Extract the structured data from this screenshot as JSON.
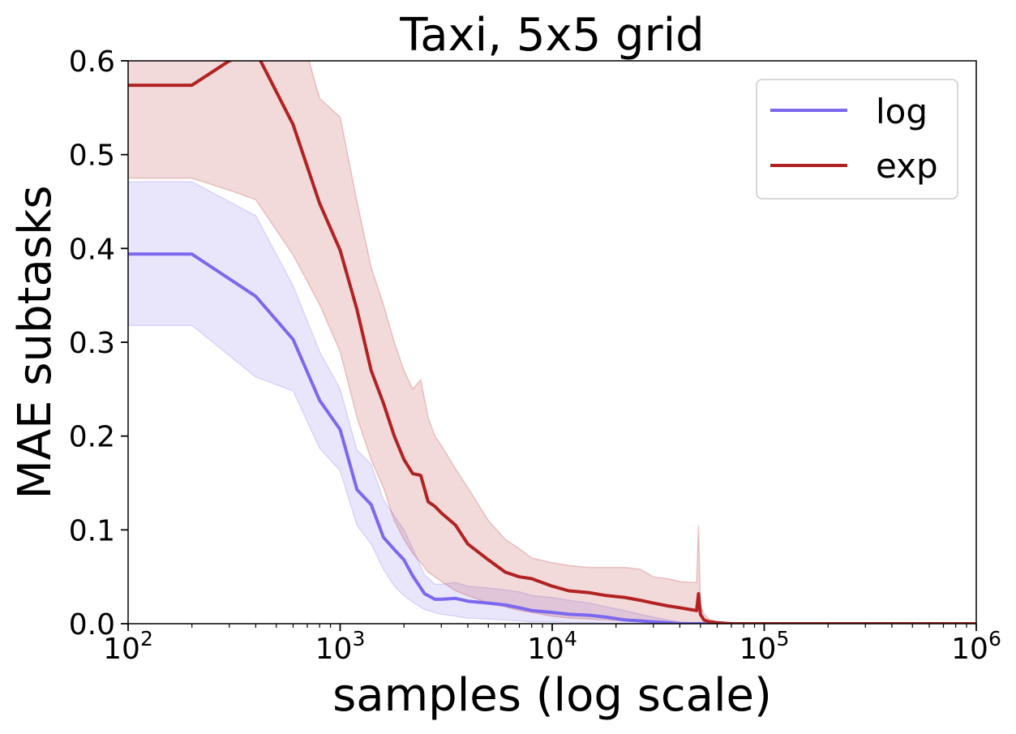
{
  "chart_data": {
    "type": "line",
    "title": "Taxi, 5x5 grid",
    "xlabel": "samples (log scale)",
    "ylabel": "MAE subtasks",
    "xscale": "log",
    "xlim": [
      100,
      1000000
    ],
    "ylim": [
      0,
      0.6
    ],
    "grid": false,
    "legend_position": "top-right",
    "x_ticks": [
      {
        "base": "10",
        "exp": "2"
      },
      {
        "base": "10",
        "exp": "3"
      },
      {
        "base": "10",
        "exp": "4"
      },
      {
        "base": "10",
        "exp": "5"
      },
      {
        "base": "10",
        "exp": "6"
      }
    ],
    "y_ticks": [
      "0.0",
      "0.1",
      "0.2",
      "0.3",
      "0.4",
      "0.5",
      "0.6"
    ],
    "series": [
      {
        "name": "log",
        "color": "#7b68ee",
        "x": [
          100,
          200,
          400,
          600,
          800,
          1000,
          1200,
          1400,
          1600,
          1800,
          2000,
          2200,
          2500,
          2800,
          3000,
          3500,
          4000,
          5000,
          6000,
          7000,
          8000,
          10000,
          12000,
          15000,
          18000,
          22000,
          26000,
          30000,
          35000,
          40000,
          45000,
          50000,
          60000,
          100000,
          1000000
        ],
        "y": [
          0.394,
          0.394,
          0.349,
          0.303,
          0.238,
          0.207,
          0.143,
          0.127,
          0.092,
          0.079,
          0.068,
          0.051,
          0.032,
          0.026,
          0.026,
          0.027,
          0.024,
          0.022,
          0.02,
          0.017,
          0.014,
          0.012,
          0.01,
          0.009,
          0.007,
          0.004,
          0.003,
          0.002,
          0.001,
          0.0,
          0.0,
          0.0,
          0.0,
          0.0,
          0.0
        ],
        "lower": [
          0.318,
          0.318,
          0.263,
          0.248,
          0.187,
          0.163,
          0.105,
          0.085,
          0.058,
          0.04,
          0.03,
          0.023,
          0.015,
          0.012,
          0.01,
          0.008,
          0.006,
          0.005,
          0.004,
          0.003,
          0.002,
          0.002,
          0.001,
          0.001,
          0.0,
          0.0,
          0.0,
          0.0,
          0.0,
          0.0,
          0.0,
          0.0,
          0.0,
          0.0,
          0.0
        ],
        "upper": [
          0.471,
          0.471,
          0.435,
          0.36,
          0.29,
          0.25,
          0.185,
          0.17,
          0.132,
          0.115,
          0.1,
          0.08,
          0.052,
          0.042,
          0.042,
          0.044,
          0.04,
          0.038,
          0.036,
          0.034,
          0.03,
          0.028,
          0.025,
          0.022,
          0.018,
          0.014,
          0.01,
          0.007,
          0.004,
          0.002,
          0.001,
          0.0,
          0.0,
          0.0,
          0.0
        ]
      },
      {
        "name": "exp",
        "color": "#b22222",
        "x": [
          100,
          200,
          300,
          400,
          600,
          800,
          1000,
          1200,
          1400,
          1600,
          1800,
          2000,
          2200,
          2400,
          2600,
          2800,
          3000,
          3500,
          4000,
          5000,
          6000,
          7000,
          8000,
          10000,
          12000,
          15000,
          18000,
          22000,
          26000,
          30000,
          35000,
          40000,
          45000,
          48000,
          49000,
          50000,
          52000,
          55000,
          60000,
          70000,
          100000,
          1000000
        ],
        "y": [
          0.574,
          0.574,
          0.6,
          0.61,
          0.532,
          0.448,
          0.398,
          0.335,
          0.27,
          0.235,
          0.2,
          0.175,
          0.16,
          0.158,
          0.13,
          0.125,
          0.118,
          0.105,
          0.085,
          0.068,
          0.055,
          0.05,
          0.048,
          0.04,
          0.035,
          0.033,
          0.03,
          0.028,
          0.025,
          0.022,
          0.019,
          0.017,
          0.015,
          0.014,
          0.032,
          0.01,
          0.004,
          0.002,
          0.001,
          0.0,
          0.0,
          0.0
        ],
        "lower": [
          0.475,
          0.475,
          0.462,
          0.452,
          0.393,
          0.34,
          0.29,
          0.22,
          0.175,
          0.145,
          0.11,
          0.09,
          0.075,
          0.065,
          0.055,
          0.05,
          0.045,
          0.035,
          0.03,
          0.022,
          0.018,
          0.014,
          0.012,
          0.008,
          0.006,
          0.005,
          0.004,
          0.003,
          0.002,
          0.002,
          0.001,
          0.001,
          0.0,
          0.0,
          0.0,
          0.0,
          0.0,
          0.0,
          0.0,
          0.0,
          0.0,
          0.0
        ],
        "upper": [
          0.68,
          0.68,
          0.7,
          0.72,
          0.66,
          0.56,
          0.54,
          0.45,
          0.38,
          0.34,
          0.3,
          0.27,
          0.25,
          0.26,
          0.22,
          0.2,
          0.19,
          0.165,
          0.145,
          0.11,
          0.09,
          0.08,
          0.07,
          0.065,
          0.062,
          0.06,
          0.06,
          0.06,
          0.058,
          0.05,
          0.048,
          0.045,
          0.044,
          0.044,
          0.105,
          0.02,
          0.01,
          0.005,
          0.002,
          0.0,
          0.0,
          0.0
        ]
      }
    ]
  }
}
